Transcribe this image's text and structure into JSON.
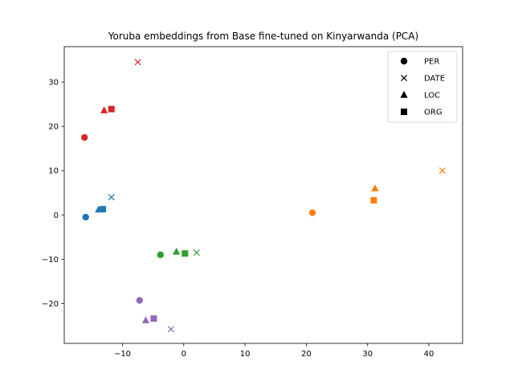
{
  "chart_data": {
    "type": "scatter",
    "title": "Yoruba embeddings from Base fine-tuned on Kinyarwanda (PCA)",
    "xlabel": "",
    "ylabel": "",
    "xlim": [
      -19.5,
      45.5
    ],
    "ylim": [
      -29,
      38
    ],
    "xticks": [
      -10,
      0,
      10,
      20,
      30,
      40
    ],
    "yticks": [
      -20,
      -10,
      0,
      10,
      20,
      30
    ],
    "xtick_labels": [
      "−10",
      "0",
      "10",
      "20",
      "30",
      "40"
    ],
    "ytick_labels": [
      "−20",
      "−10",
      "0",
      "10",
      "20",
      "30"
    ],
    "grid": false,
    "legend_position": "top-right",
    "legend": [
      {
        "label": "PER",
        "marker": "circle"
      },
      {
        "label": "DATE",
        "marker": "x"
      },
      {
        "label": "LOC",
        "marker": "triangle"
      },
      {
        "label": "ORG",
        "marker": "square"
      }
    ],
    "colors": [
      "#1f77b4",
      "#ff7f0e",
      "#2ca02c",
      "#d62728",
      "#9467bd"
    ],
    "groups": [
      {
        "color": "#1f77b4",
        "points": [
          {
            "marker": "circle",
            "x": -16.0,
            "y": -0.5
          },
          {
            "marker": "x",
            "x": -11.8,
            "y": 4.0
          },
          {
            "marker": "triangle",
            "x": -13.9,
            "y": 1.2
          },
          {
            "marker": "square",
            "x": -13.2,
            "y": 1.3
          }
        ]
      },
      {
        "color": "#ff7f0e",
        "points": [
          {
            "marker": "circle",
            "x": 21.0,
            "y": 0.5
          },
          {
            "marker": "x",
            "x": 42.2,
            "y": 10.0
          },
          {
            "marker": "triangle",
            "x": 31.2,
            "y": 6.0
          },
          {
            "marker": "square",
            "x": 31.0,
            "y": 3.3
          }
        ]
      },
      {
        "color": "#2ca02c",
        "points": [
          {
            "marker": "circle",
            "x": -3.8,
            "y": -9.0
          },
          {
            "marker": "x",
            "x": 2.1,
            "y": -8.5
          },
          {
            "marker": "triangle",
            "x": -1.2,
            "y": -8.3
          },
          {
            "marker": "square",
            "x": 0.2,
            "y": -8.7
          }
        ]
      },
      {
        "color": "#d62728",
        "points": [
          {
            "marker": "circle",
            "x": -16.2,
            "y": 17.5
          },
          {
            "marker": "x",
            "x": -7.5,
            "y": 34.5
          },
          {
            "marker": "triangle",
            "x": -13.0,
            "y": 23.6
          },
          {
            "marker": "square",
            "x": -11.8,
            "y": 23.9
          }
        ]
      },
      {
        "color": "#9467bd",
        "points": [
          {
            "marker": "circle",
            "x": -7.2,
            "y": -19.3
          },
          {
            "marker": "x",
            "x": -2.1,
            "y": -25.8
          },
          {
            "marker": "triangle",
            "x": -6.2,
            "y": -23.8
          },
          {
            "marker": "square",
            "x": -4.9,
            "y": -23.4
          }
        ]
      }
    ]
  }
}
